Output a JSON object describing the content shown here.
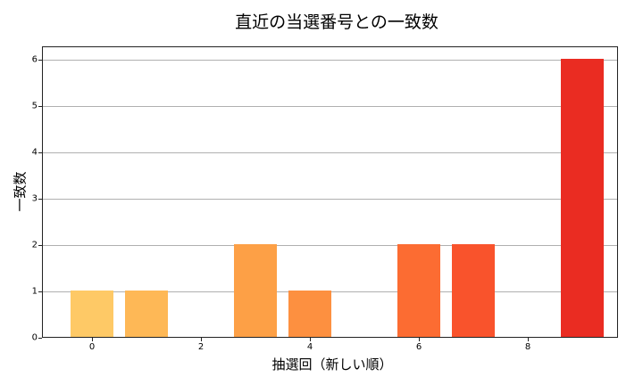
{
  "chart_data": {
    "type": "bar",
    "title": "直近の当選番号との一致数",
    "xlabel": "抽選回（新しい順）",
    "ylabel": "一致数",
    "categories": [
      0,
      1,
      2,
      3,
      4,
      5,
      6,
      7,
      8,
      9
    ],
    "values": [
      1,
      1,
      0,
      2,
      1,
      0,
      2,
      2,
      0,
      6
    ],
    "colors": [
      "#fec966",
      "#feb856",
      "#fea649",
      "#fda046",
      "#fd9040",
      "#fd7d38",
      "#fc6c32",
      "#f9532c",
      "#f13f27",
      "#ea2c22"
    ],
    "xticks": [
      "0",
      "2",
      "4",
      "6",
      "8"
    ],
    "yticks": [
      "0",
      "1",
      "2",
      "3",
      "4",
      "5",
      "6"
    ],
    "xlim": [
      -0.9,
      9.7
    ],
    "ylim": [
      0,
      6.3
    ],
    "grid": "y"
  }
}
